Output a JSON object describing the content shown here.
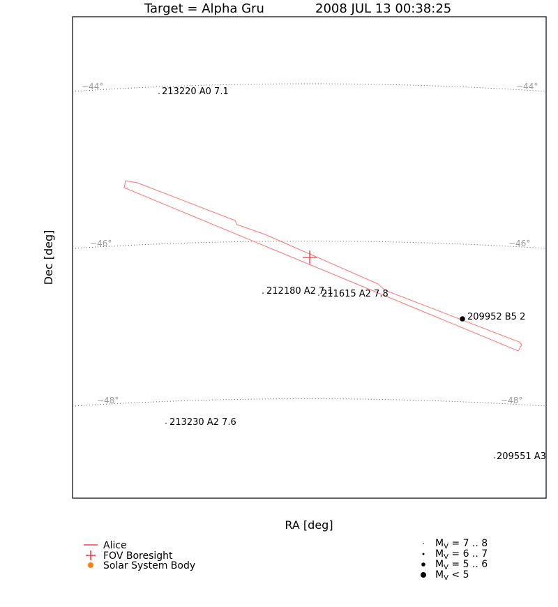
{
  "chart_data": {
    "type": "scatter",
    "title": {
      "target": "Target = Alpha Gru",
      "datetime": "2008 JUL 13 00:38:25"
    },
    "xlabel": "RA [deg]",
    "ylabel": "Dec [deg]",
    "dec_lines": [
      {
        "label": "−44°"
      },
      {
        "label": "−46°"
      },
      {
        "label": "−48°"
      }
    ],
    "stars": [
      {
        "id": "213220",
        "label": "213220 A0 7.1",
        "magnitude": 7.1,
        "mag_bin": "7-8"
      },
      {
        "id": "212180",
        "label": "212180 A2 7.1",
        "magnitude": 7.1,
        "mag_bin": "7-8"
      },
      {
        "id": "211615",
        "label": "211615 A2 7.8",
        "magnitude": 7.8,
        "mag_bin": "7-8"
      },
      {
        "id": "209952",
        "label": "209952 B5 2",
        "magnitude": 2,
        "mag_bin": "<5"
      },
      {
        "id": "213230",
        "label": "213230 A2 7.6",
        "magnitude": 7.6,
        "mag_bin": "7-8"
      },
      {
        "id": "209551",
        "label": "209551 A3",
        "magnitude": null,
        "mag_bin": "7-8"
      }
    ],
    "legend": {
      "left": [
        {
          "label": "Alice",
          "color": "#ff7070",
          "symbol": "line"
        },
        {
          "label": "FOV Boresight",
          "color": "#ff3030",
          "symbol": "cross"
        },
        {
          "label": "Solar System Body",
          "color": "#ff7f00",
          "symbol": "dot"
        }
      ],
      "right": [
        {
          "prefix": "M",
          "sub": "V",
          "suffix": " = 7 .. 8",
          "size": 1
        },
        {
          "prefix": "M",
          "sub": "V",
          "suffix": " = 6 .. 7",
          "size": 2
        },
        {
          "prefix": "M",
          "sub": "V",
          "suffix": " = 5 .. 6",
          "size": 3
        },
        {
          "prefix": "M",
          "sub": "V",
          "suffix": " < 5",
          "size": 4
        }
      ]
    },
    "colors": {
      "slit": "#ff7070",
      "boresight": "#ff3030",
      "grid": "#555555",
      "grid_label": "#9a9a9a",
      "solar_body": "#ff7f00"
    }
  }
}
